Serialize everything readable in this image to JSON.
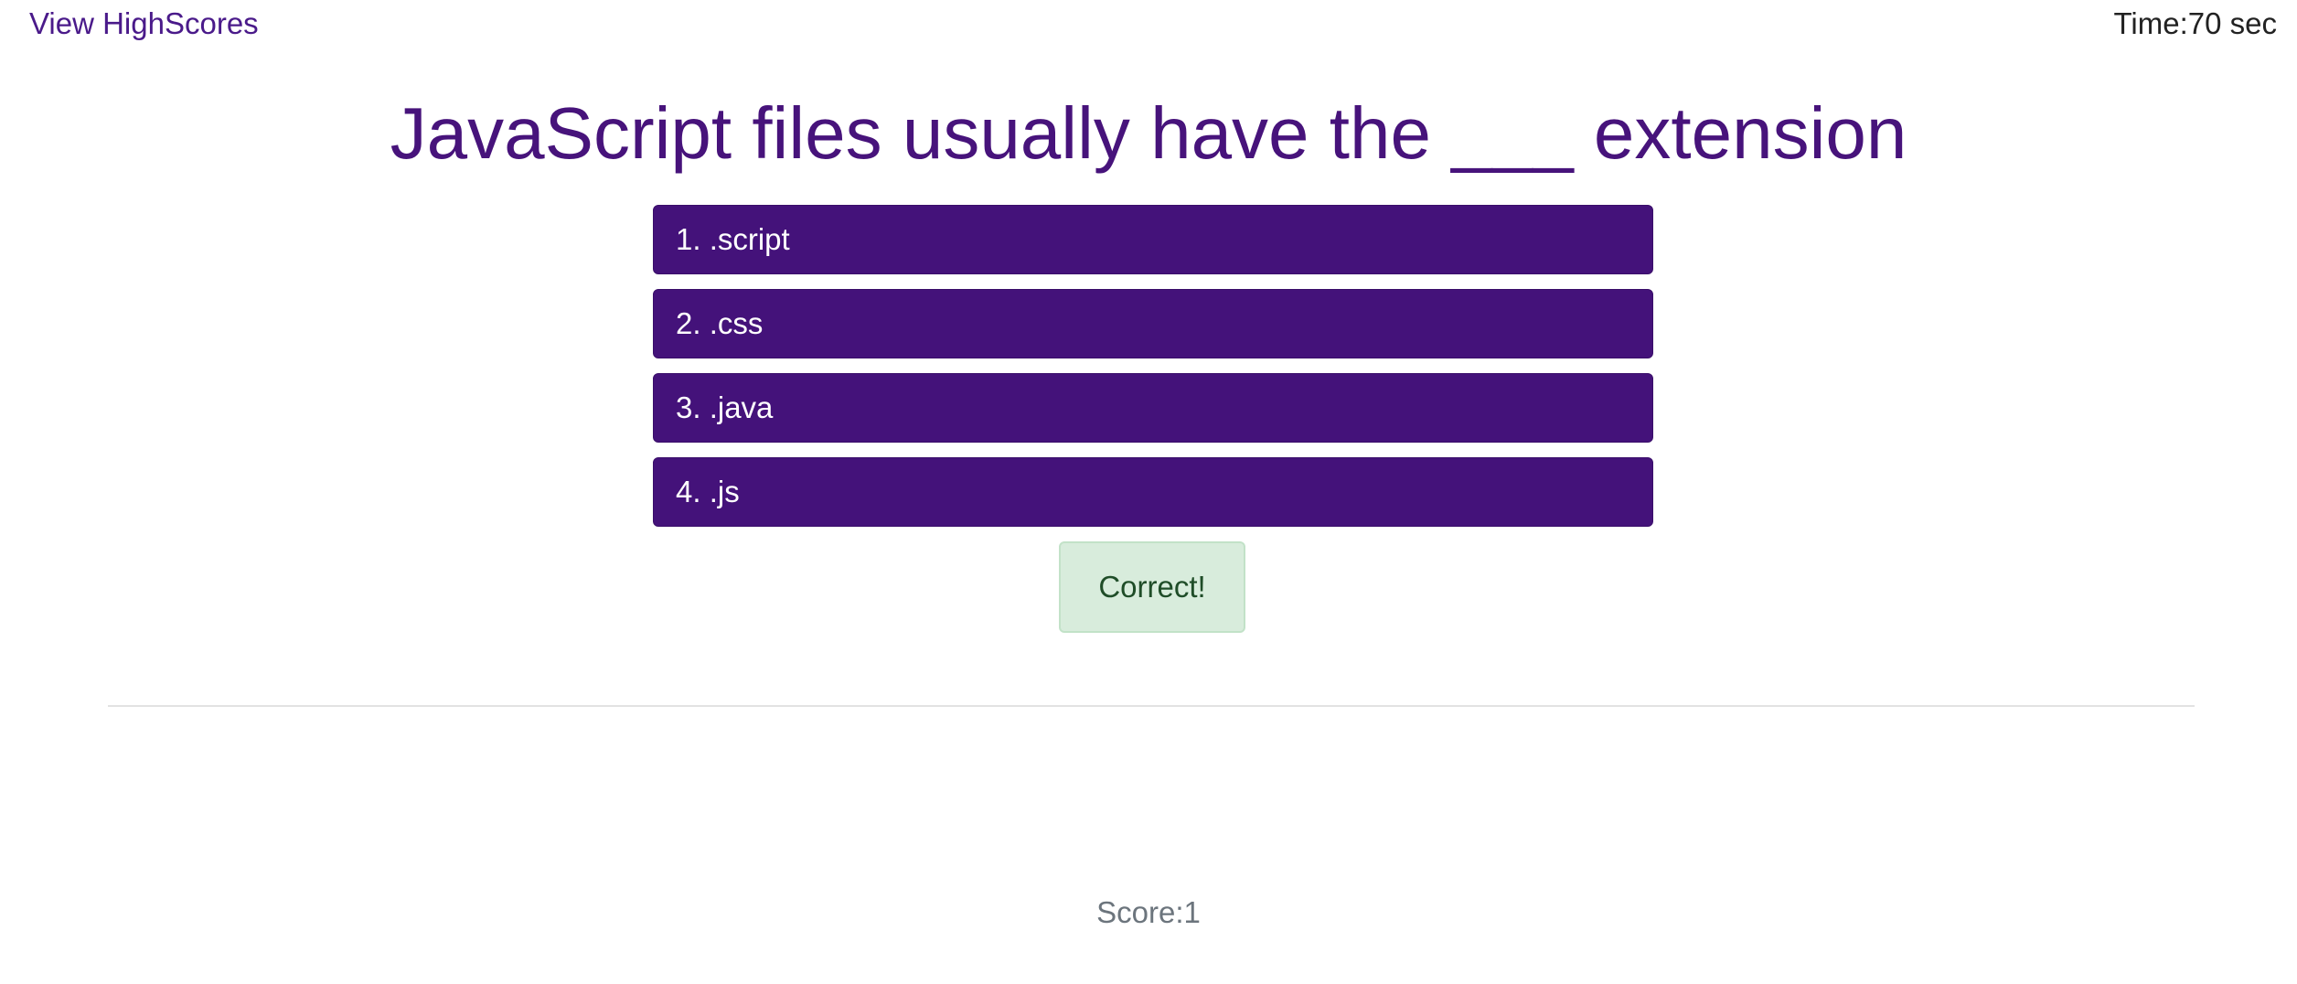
{
  "header": {
    "highscores_link": "View HighScores",
    "timer": "Time:70 sec"
  },
  "quiz": {
    "question": "JavaScript files usually have the ___ extension",
    "choices": [
      {
        "label": "1. .script"
      },
      {
        "label": "2. .css"
      },
      {
        "label": "3. .java"
      },
      {
        "label": "4. .js"
      }
    ],
    "feedback": "Correct!"
  },
  "footer": {
    "score": "Score:1"
  },
  "colors": {
    "accent": "#44127a",
    "question_text": "#47137b",
    "feedback_bg": "#d8ecdc",
    "feedback_text": "#1f4d28",
    "score_text": "#6c757d"
  }
}
